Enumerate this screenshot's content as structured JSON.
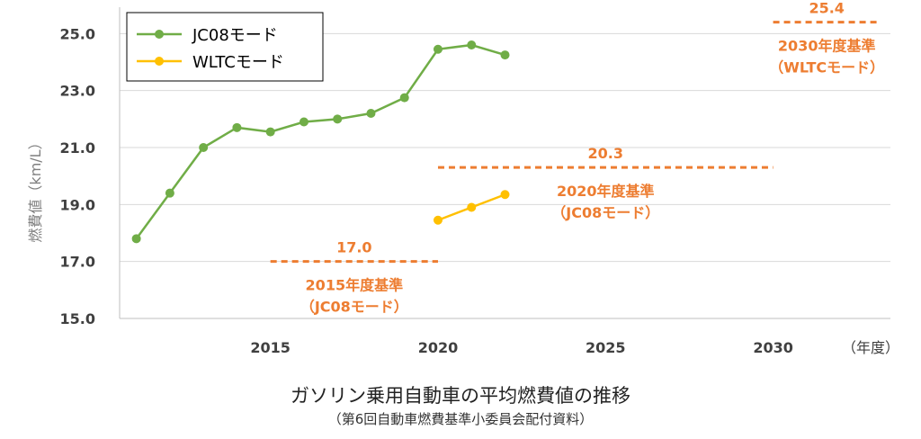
{
  "chart_data": {
    "type": "line",
    "title": "ガソリン乗用自動車の平均燃費値の推移",
    "subtitle": "（第6回自動車燃費基準小委員会配付資料）",
    "ylabel": "燃費値（km/L）",
    "xunit": "（年度）",
    "ylim": [
      15,
      25.8
    ],
    "xlim": [
      2010.5,
      2033.5
    ],
    "y_ticks": [
      "15.0",
      "17.0",
      "19.0",
      "21.0",
      "23.0",
      "25.0"
    ],
    "x_ticks": [
      "2015",
      "2020",
      "2025",
      "2030"
    ],
    "grid": "horizontal",
    "legend_position": "top-left",
    "series": [
      {
        "name": "JC08モード",
        "color": "#70ad47",
        "x": [
          2011,
          2012,
          2013,
          2014,
          2015,
          2016,
          2017,
          2018,
          2019,
          2020,
          2021,
          2022
        ],
        "y": [
          17.8,
          19.4,
          21.0,
          21.7,
          21.55,
          21.9,
          22.0,
          22.2,
          22.75,
          24.45,
          24.6,
          24.25
        ]
      },
      {
        "name": "WLTCモード",
        "color": "#ffc000",
        "x": [
          2020,
          2021,
          2022
        ],
        "y": [
          18.45,
          18.9,
          19.35
        ]
      }
    ],
    "targets": [
      {
        "value": 17.0,
        "value_label": "17.0",
        "x_start": 2015,
        "x_end": 2020,
        "line1": "2015年度基準",
        "line2": "（JC08モード）"
      },
      {
        "value": 20.3,
        "value_label": "20.3",
        "x_start": 2020,
        "x_end": 2030,
        "line1": "2020年度基準",
        "line2": "（JC08モード）"
      },
      {
        "value": 25.4,
        "value_label": "25.4",
        "x_start": 2030,
        "x_end": 2033.2,
        "line1": "2030年度基準",
        "line2": "（WLTCモード）"
      }
    ],
    "target_color": "#ed7d31"
  }
}
